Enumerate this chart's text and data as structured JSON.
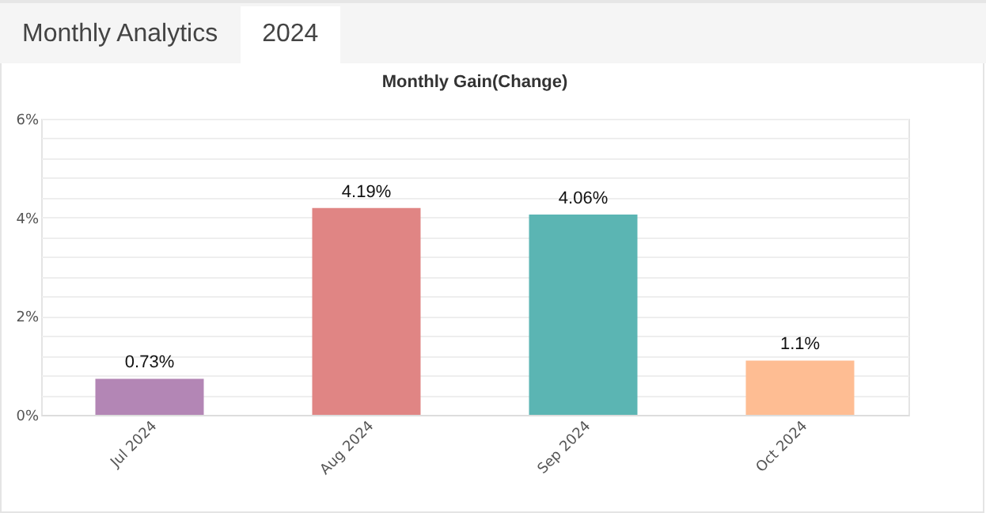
{
  "chart_data": {
    "type": "bar",
    "title": "Monthly Gain(Change)",
    "annotations": [
      "Monthly Analytics",
      "2024"
    ],
    "categories": [
      "Jul 2024",
      "Aug 2024",
      "Sep 2024",
      "Oct 2024"
    ],
    "values": [
      0.73,
      4.19,
      4.06,
      1.1
    ],
    "value_labels": [
      "0.73%",
      "4.19%",
      "4.06%",
      "1.1%"
    ],
    "colors": [
      "#b386b5",
      "#e08584",
      "#5bb5b3",
      "#febd93"
    ],
    "ylim": [
      0,
      6
    ],
    "yticks": [
      {
        "value": 0,
        "label": "0%"
      },
      {
        "value": 0.4,
        "label": null
      },
      {
        "value": 0.8,
        "label": null
      },
      {
        "value": 1.2,
        "label": null
      },
      {
        "value": 1.6,
        "label": null
      },
      {
        "value": 2,
        "label": "2%"
      },
      {
        "value": 2.4,
        "label": null
      },
      {
        "value": 2.8,
        "label": null
      },
      {
        "value": 3.2,
        "label": null
      },
      {
        "value": 3.6,
        "label": null
      },
      {
        "value": 4,
        "label": "4%"
      },
      {
        "value": 4.4,
        "label": null
      },
      {
        "value": 4.8,
        "label": null
      },
      {
        "value": 5.2,
        "label": null
      },
      {
        "value": 5.6,
        "label": null
      },
      {
        "value": 6,
        "label": "6%"
      }
    ],
    "grid": true,
    "legend": false
  }
}
